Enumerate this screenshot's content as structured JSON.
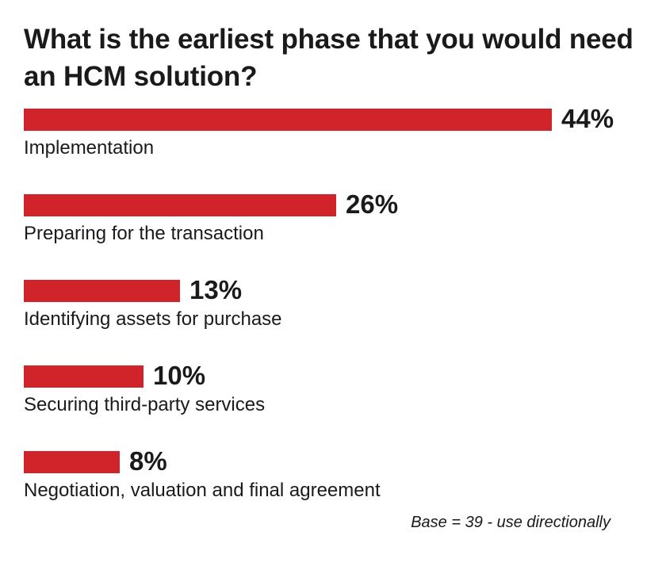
{
  "chart_data": {
    "type": "bar",
    "orientation": "horizontal",
    "title": "What is the earliest phase that you would need an HCM solution?",
    "categories": [
      "Implementation",
      "Preparing for the transaction",
      "Identifying assets for purchase",
      "Securing third-party services",
      "Negotiation, valuation and final agreement"
    ],
    "values": [
      44,
      26,
      13,
      10,
      8
    ],
    "value_labels": [
      "44%",
      "26%",
      "13%",
      "10%",
      "8%"
    ],
    "unit": "%",
    "xlim": [
      0,
      44
    ],
    "grid": false,
    "bar_color": "#d0242a",
    "footnote": "Base = 39 - use directionally"
  }
}
